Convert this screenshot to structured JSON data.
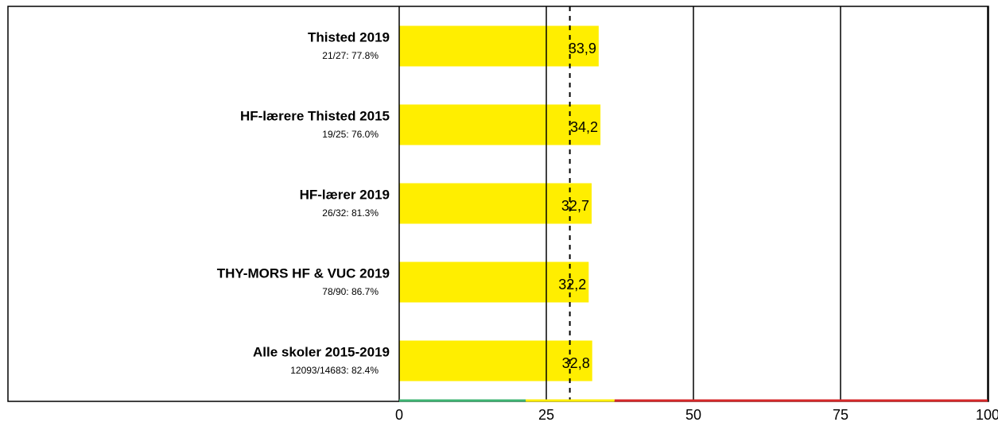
{
  "chart_data": {
    "type": "hbar",
    "categories": [
      "Thisted 2019",
      "HF-lærere Thisted 2015",
      "HF-lærer 2019",
      "THY-MORS HF & VUC 2019",
      "Alle skoler 2015-2019"
    ],
    "sublabels": [
      "21/27: 77.8%",
      "19/25: 76.0%",
      "26/32: 81.3%",
      "78/90: 86.7%",
      "12093/14683: 82.4%"
    ],
    "values": [
      33.9,
      34.2,
      32.7,
      32.2,
      32.8
    ],
    "value_labels": [
      "33,9",
      "34,2",
      "32,7",
      "32,2",
      "32,8"
    ],
    "color": "#ffee00",
    "xlim": [
      0,
      100
    ],
    "xticks": [
      0,
      25,
      50,
      75,
      100
    ],
    "grid": true,
    "reference_line": 29,
    "bands": [
      {
        "from": 0,
        "to": 21.5,
        "color": "#3cb371"
      },
      {
        "from": 21.5,
        "to": 36.6,
        "color": "#ffee00"
      },
      {
        "from": 36.6,
        "to": 100,
        "color": "#d62728"
      }
    ]
  }
}
